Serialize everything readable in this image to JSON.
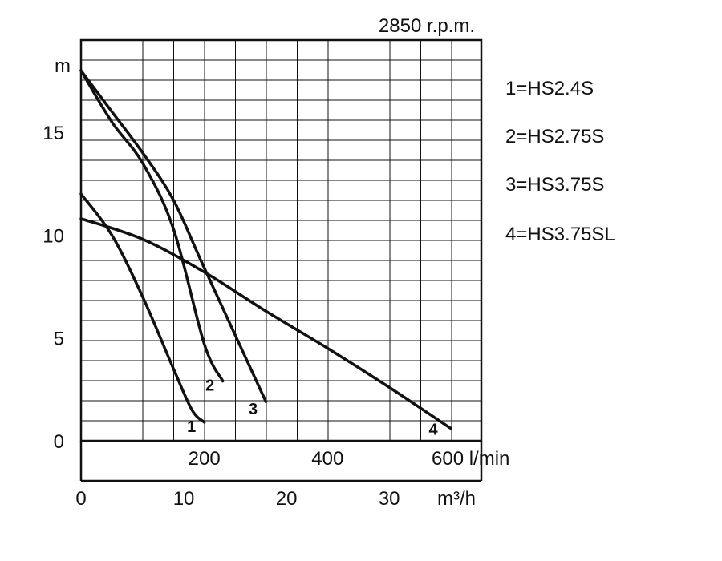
{
  "chart_data": {
    "type": "line",
    "title": "2850 r.p.m.",
    "ylabel": "m",
    "x_units_lmin": "l/min",
    "x_units_m3h": "m³/h",
    "xlim": [
      0,
      600
    ],
    "ylim": [
      0,
      19
    ],
    "grid": true,
    "y_ticks": [
      "0",
      "5",
      "10",
      "15"
    ],
    "x_ticks_lmin": [
      "200",
      "400",
      "600"
    ],
    "x_ticks_m3h": [
      "0",
      "10",
      "20",
      "30"
    ],
    "legend": [
      "1=HS2.4S",
      "2=HS2.75S",
      "3=HS3.75S",
      "4=HS3.75SL"
    ],
    "series": [
      {
        "name": "1",
        "x": [
          0,
          50,
          100,
          150,
          180,
          200
        ],
        "y": [
          12,
          10,
          7,
          3.5,
          1.5,
          0.9
        ]
      },
      {
        "name": "2",
        "x": [
          0,
          50,
          100,
          150,
          200,
          230
        ],
        "y": [
          18,
          15.5,
          13.5,
          10.3,
          4.7,
          2.9
        ]
      },
      {
        "name": "3",
        "x": [
          0,
          50,
          100,
          150,
          200,
          300
        ],
        "y": [
          18,
          16,
          14,
          11.7,
          8.4,
          1.9
        ]
      },
      {
        "name": "4",
        "x": [
          0,
          100,
          200,
          300,
          400,
          500,
          600
        ],
        "y": [
          10.8,
          9.8,
          8.2,
          6.3,
          4.5,
          2.6,
          0.6
        ]
      }
    ]
  }
}
